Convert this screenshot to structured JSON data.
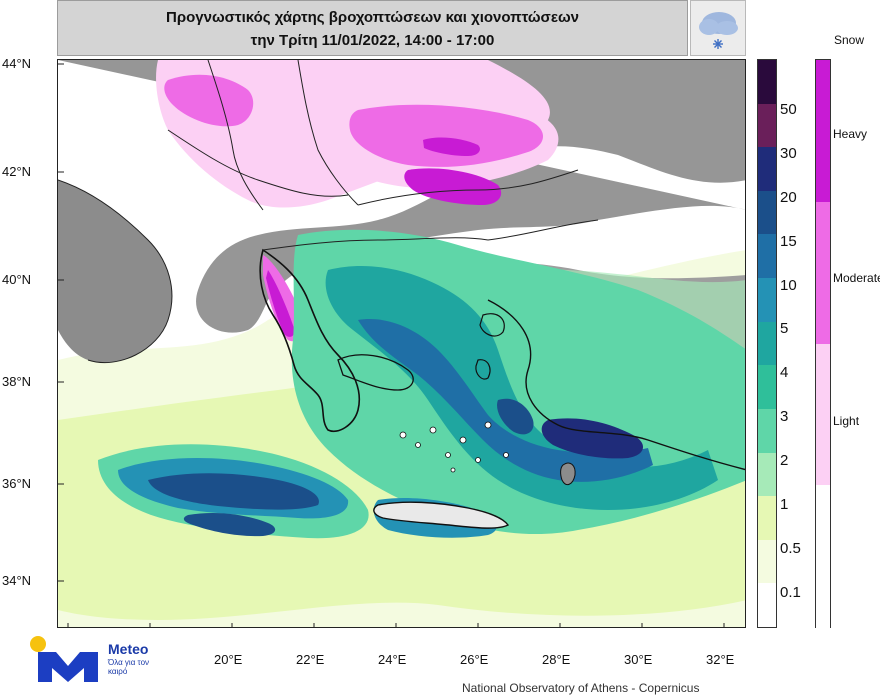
{
  "title": {
    "line1": "Προγνωστικός χάρτης βροχοπτώσεων και χιονοπτώσεων",
    "line2": "την Τρίτη 11/01/2022, 14:00 - 17:00"
  },
  "icons": {
    "left": "thunderstorm-rain-icon",
    "right": "snow-cloud-icon"
  },
  "axes": {
    "lat_labels": [
      "44°N",
      "42°N",
      "40°N",
      "38°N",
      "36°N",
      "34°N"
    ],
    "lon_labels": [
      "20°E",
      "22°E",
      "24°E",
      "26°E",
      "28°E",
      "30°E",
      "32°E"
    ]
  },
  "legend_rain": {
    "labels": [
      "50",
      "30",
      "20",
      "15",
      "10",
      "5",
      "4",
      "3",
      "2",
      "1",
      "0.5",
      "0.1"
    ],
    "colors": [
      "#2a0a3c",
      "#6a1f5a",
      "#1f2c7a",
      "#1b4f8a",
      "#1f6fa6",
      "#2492b5",
      "#1fa6a0",
      "#2fbf9a",
      "#5fd6a8",
      "#a6eab8",
      "#e6f8b4",
      "#f4fbe0",
      "#ffffff"
    ]
  },
  "legend_snow": {
    "title": "Snow",
    "labels": [
      "Heavy",
      "Moderate",
      "Light"
    ],
    "colors": [
      "#c81bd4",
      "#ee6be6",
      "#fcd0f4",
      "#ffffff"
    ]
  },
  "logo": {
    "name": "Meteo",
    "tagline": "Όλα για τον καιρό"
  },
  "footer": "National Observatory of Athens - Copernicus"
}
